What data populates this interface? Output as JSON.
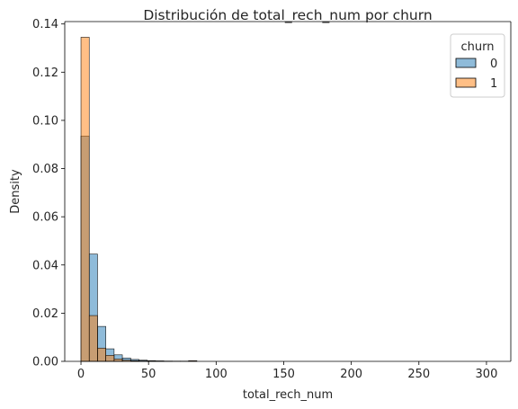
{
  "chart_data": {
    "type": "bar",
    "title": "Distribución de total_rech_num por churn",
    "xlabel": "total_rech_num",
    "ylabel": "Density",
    "xlim": [
      -12,
      318
    ],
    "ylim": [
      0,
      0.141
    ],
    "xticks": [
      0,
      50,
      100,
      150,
      200,
      250,
      300
    ],
    "yticks": [
      0.0,
      0.02,
      0.04,
      0.06,
      0.08,
      0.1,
      0.12,
      0.14
    ],
    "ytick_labels": [
      "0.00",
      "0.02",
      "0.04",
      "0.06",
      "0.08",
      "0.10",
      "0.12",
      "0.14"
    ],
    "bin_edges": [
      0,
      6.125,
      12.25,
      18.375,
      24.5,
      30.625,
      36.75,
      42.875,
      49,
      55.125,
      61.25,
      67.375,
      73.5,
      79.625,
      85.75
    ],
    "grid": false,
    "legend": {
      "title": "churn",
      "placement": "top-right"
    },
    "series": [
      {
        "name": "0",
        "color": "#1f77b4",
        "values": [
          0.0935,
          0.0445,
          0.0145,
          0.0052,
          0.0027,
          0.0014,
          0.0008,
          0.0005,
          0.0003,
          0.0002,
          0.0001,
          0.0001,
          0.0001,
          0.0
        ]
      },
      {
        "name": "1",
        "color": "#ff7f0e",
        "values": [
          0.1345,
          0.019,
          0.0055,
          0.0025,
          0.001,
          0.0005,
          0.0003,
          0.0002,
          0.0001,
          0.0001,
          0.0001,
          0.0,
          0.0,
          0.0003
        ]
      }
    ]
  }
}
